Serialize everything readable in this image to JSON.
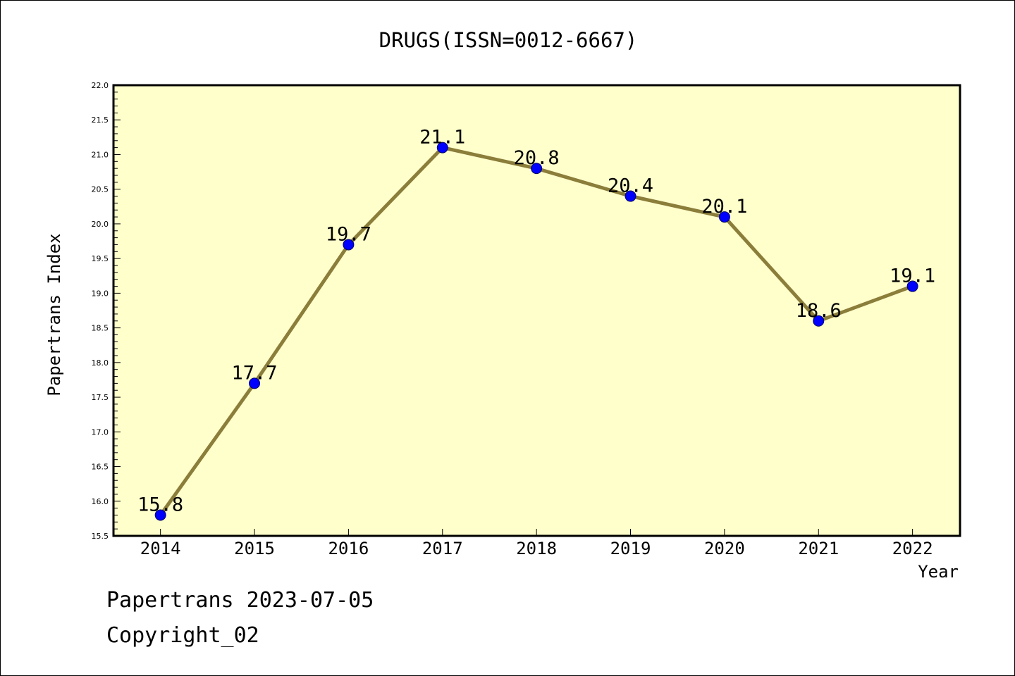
{
  "chart_data": {
    "type": "line",
    "title": "DRUGS(ISSN=0012-6667)",
    "xlabel": "Year",
    "ylabel": "Papertrans Index",
    "categories": [
      "2014",
      "2015",
      "2016",
      "2017",
      "2018",
      "2019",
      "2020",
      "2021",
      "2022"
    ],
    "values": [
      15.8,
      17.7,
      19.7,
      21.1,
      20.8,
      20.4,
      20.1,
      18.6,
      19.1
    ],
    "data_labels": [
      "15.8",
      "17.7",
      "19.7",
      "21.1",
      "20.8",
      "20.4",
      "20.1",
      "18.6",
      "19.1"
    ],
    "ylim": [
      15.5,
      22.0
    ],
    "yticks": [
      "15.5",
      "16.0",
      "16.5",
      "17.0",
      "17.5",
      "18.0",
      "18.5",
      "19.0",
      "19.5",
      "20.0",
      "20.5",
      "21.0",
      "21.5",
      "22.0"
    ],
    "grid": false,
    "legend": "none",
    "colors": {
      "plot_background": "#ffffcc",
      "line": "#8b7d3a",
      "marker": "#0000ff",
      "marker_edge": "#000066"
    }
  },
  "footer": {
    "line1": "Papertrans 2023-07-05",
    "line2": "Copyright_02"
  }
}
